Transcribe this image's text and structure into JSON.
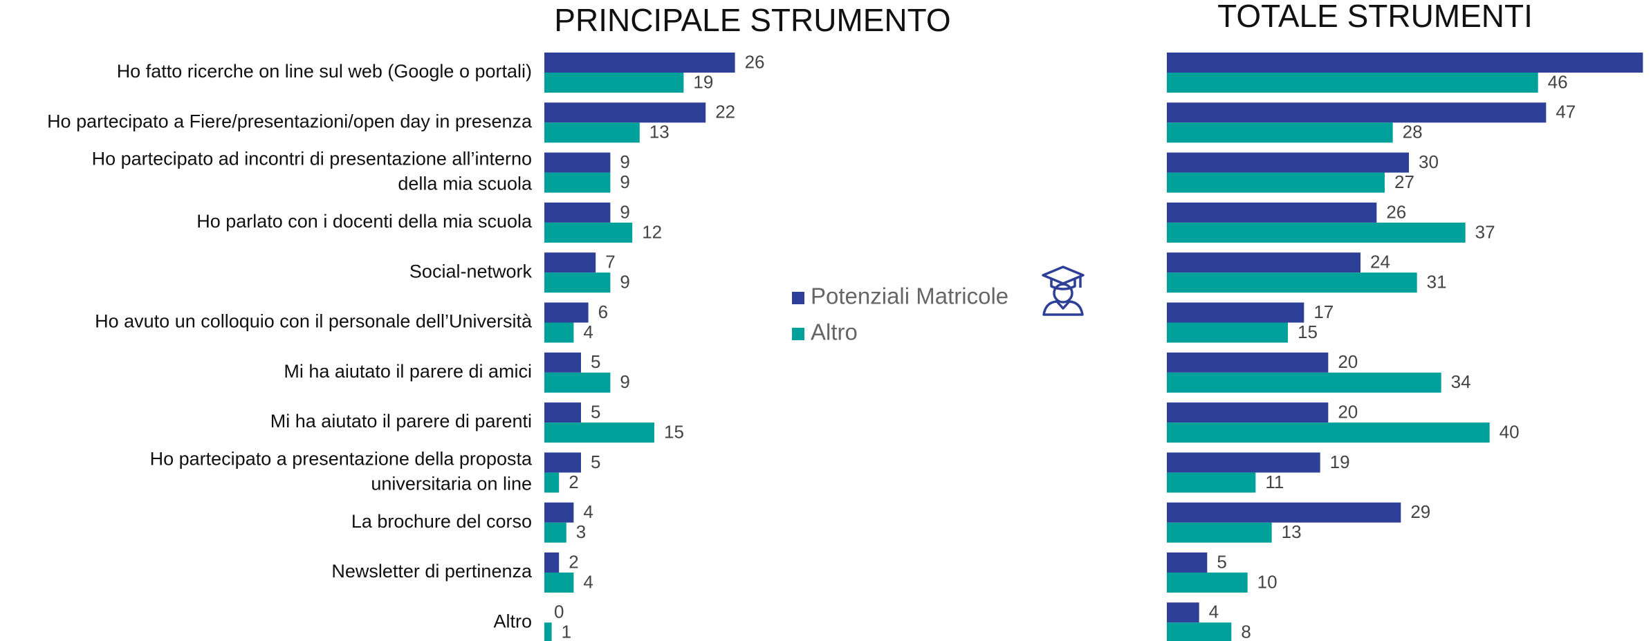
{
  "chart_data": [
    {
      "type": "barh",
      "title": "PRINCIPALE STRUMENTO",
      "categories": [
        "Ho fatto ricerche on line sul web (Google o portali)",
        "Ho partecipato a Fiere/presentazioni/open day in presenza",
        "Ho partecipato ad incontri di presentazione all’interno\ndella mia scuola",
        "Ho parlato con i docenti della mia scuola",
        "Social-network",
        "Ho avuto un colloquio con il personale dell’Università",
        "Mi ha aiutato il parere di amici",
        "Mi ha aiutato il parere di parenti",
        "Ho partecipato a presentazione della proposta\nuniversitaria on line",
        "La brochure del corso",
        "Newsletter di pertinenza",
        "Altro"
      ],
      "series": [
        {
          "name": "Potenziali Matricole",
          "color": "#2e3f98",
          "values": [
            26,
            22,
            9,
            9,
            7,
            6,
            5,
            5,
            5,
            4,
            2,
            0
          ]
        },
        {
          "name": "Altro",
          "color": "#00a19a",
          "values": [
            19,
            13,
            9,
            12,
            9,
            4,
            9,
            15,
            2,
            3,
            4,
            1
          ]
        }
      ],
      "xlim": [
        0,
        30
      ]
    },
    {
      "type": "barh",
      "title": "TOTALE STRUMENTI",
      "series": [
        {
          "color": "#2e3f98",
          "values": [
            59,
            47,
            30,
            26,
            24,
            17,
            20,
            20,
            19,
            29,
            5,
            4
          ]
        },
        {
          "color": "#00a19a",
          "values": [
            46,
            28,
            27,
            37,
            31,
            15,
            34,
            40,
            11,
            13,
            10,
            8
          ]
        }
      ],
      "xlim": [
        0,
        60
      ]
    }
  ]
}
